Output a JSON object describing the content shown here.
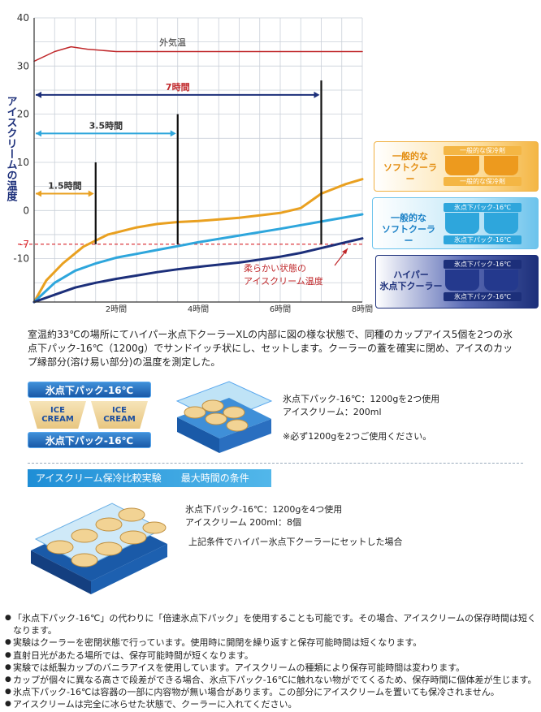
{
  "chart_data": {
    "type": "line",
    "title": "",
    "ylabel": "アイスクリームの温度",
    "xlabel": "",
    "xlim": [
      0,
      8
    ],
    "ylim": [
      -19,
      40
    ],
    "y_ticks": [
      40,
      30,
      20,
      10,
      0,
      -10
    ],
    "y_tick_labels": [
      "40",
      "30",
      "20",
      "10",
      "0",
      "-10"
    ],
    "x_ticks": [
      2,
      4,
      6,
      8
    ],
    "x_tick_labels": [
      "2時間",
      "4時間",
      "6時間",
      "8時間"
    ],
    "grid": true,
    "threshold": {
      "value": -7,
      "label": "-7",
      "color": "#d9242a"
    },
    "series": [
      {
        "name": "外気温",
        "color": "#c0282b",
        "x": [
          0,
          0.5,
          0.9,
          1.3,
          2,
          3,
          4,
          5,
          6,
          7,
          8
        ],
        "y": [
          31,
          33,
          34,
          33.5,
          33,
          33,
          33,
          33,
          33,
          33,
          33
        ]
      },
      {
        "name": "一般的なソフトクーラー",
        "color": "#e9a020",
        "x": [
          0,
          0.3,
          0.7,
          1.2,
          1.8,
          2.5,
          3,
          3.5,
          4,
          5,
          6,
          6.5,
          7,
          7.3,
          7.6,
          8
        ],
        "y": [
          -19,
          -14.5,
          -11,
          -7.5,
          -5,
          -3.5,
          -2.8,
          -2.4,
          -2.2,
          -1.5,
          -0.5,
          0.5,
          3.5,
          4.5,
          5.5,
          6.5
        ]
      },
      {
        "name": "一般的なソフトクーラー(氷点下パック)",
        "color": "#2ea6dc",
        "x": [
          0,
          0.5,
          1,
          1.5,
          2,
          2.5,
          3,
          3.5,
          4,
          5,
          6,
          7,
          8
        ],
        "y": [
          -19,
          -15,
          -12.5,
          -11,
          -9.8,
          -9,
          -8.2,
          -7.4,
          -6.6,
          -5.2,
          -3.8,
          -2.3,
          -0.8
        ]
      },
      {
        "name": "ハイパー氷点下クーラー",
        "color": "#1c2f7a",
        "x": [
          0,
          0.5,
          1,
          1.5,
          2,
          2.5,
          3,
          3.5,
          4,
          5,
          6,
          6.5,
          7,
          7.5,
          8
        ],
        "y": [
          -19,
          -17.5,
          -16,
          -15,
          -14.2,
          -13.5,
          -12.8,
          -12.2,
          -11.7,
          -10.8,
          -9.6,
          -8.8,
          -7.8,
          -6.8,
          -5.8
        ]
      }
    ],
    "duration_markers": [
      {
        "label": "1.5時間",
        "hours": 1.5,
        "color": "#e9a020",
        "y": 3.5
      },
      {
        "label": "3.5時間",
        "hours": 3.5,
        "color": "#2ea6dc",
        "y": 16
      },
      {
        "label": "7時間",
        "hours": 7,
        "color": "#1c2f7a",
        "label_color": "#c0282b",
        "y": 24
      }
    ],
    "vertical_markers": [
      {
        "hours": 1.5,
        "top": 10
      },
      {
        "hours": 3.5,
        "top": 20
      },
      {
        "hours": 7,
        "top": 27
      }
    ],
    "annotation": "柔らかい状態の\nアイスクリーム温度",
    "outside_temp_label": "外気温"
  },
  "legend": {
    "soft_normal": {
      "label": "一般的な\nソフトクーラー",
      "pack_label": "一般的な保冷剤",
      "color": "#e9a020"
    },
    "soft_freeze": {
      "label": "一般的な\nソフトクーラー",
      "pack_label": "氷点下パック-16℃",
      "color": "#2ea6dc"
    },
    "hyper": {
      "label": "ハイパー\n氷点下クーラー",
      "pack_label": "氷点下パック-16℃",
      "color": "#1c2f7a"
    }
  },
  "description": "室温約33℃の場所にてハイパー氷点下クーラーXLの内部に図の様な状態で、同種のカップアイス5個を2つの氷点下パック-16℃（1200g）でサンドイッチ状にし、セットします。クーラーの蓋を確実に閉め、アイスのカップ縁部分(溶け易い部分)の温度を測定した。",
  "sandwich": {
    "pack_label": "氷点下パック-16℃",
    "cup_label": "ICE\nCREAM",
    "spec_1": "氷点下パック-16℃：1200gを2つ使用",
    "spec_2": "アイスクリーム：200ml",
    "spec_note": "※必ず1200gを2つご使用ください。"
  },
  "experiment": {
    "banner_title": "アイスクリーム保冷比較実験",
    "banner_sub": "最大時間の条件",
    "spec_1": "氷点下パック-16℃：1200gを4つ使用",
    "spec_2": "アイスクリーム 200ml：8個",
    "spec_3": "上記条件でハイパー氷点下クーラーにセットした場合",
    "cup_label": "ICE\nCREAM"
  },
  "notes": [
    "「氷点下パック-16℃」の代わりに「倍速氷点下パック」を使用することも可能です。その場合、アイスクリームの保存時間は短く",
    "なります。",
    "実験はクーラーを密閉状態で行っています。使用時に開閉を繰り返すと保存可能時間は短くなります。",
    "直射日光があたる場所では、保存可能時間が短くなります。",
    "実験では紙製カップのバニラアイスを使用しています。アイスクリームの種類により保存可能時間は変わります。",
    "カップが個々に異なる高さで段差ができる場合、氷点下パック-16℃に触れない物がでてくるため、保存時間に個体差が生じます。",
    "氷点下パック-16℃は容器の一部に内容物が無い場合があります。この部分にアイスクリームを置いても保冷されません。",
    "アイスクリームは完全に冰らせた状態で、クーラーに入れてください。"
  ]
}
